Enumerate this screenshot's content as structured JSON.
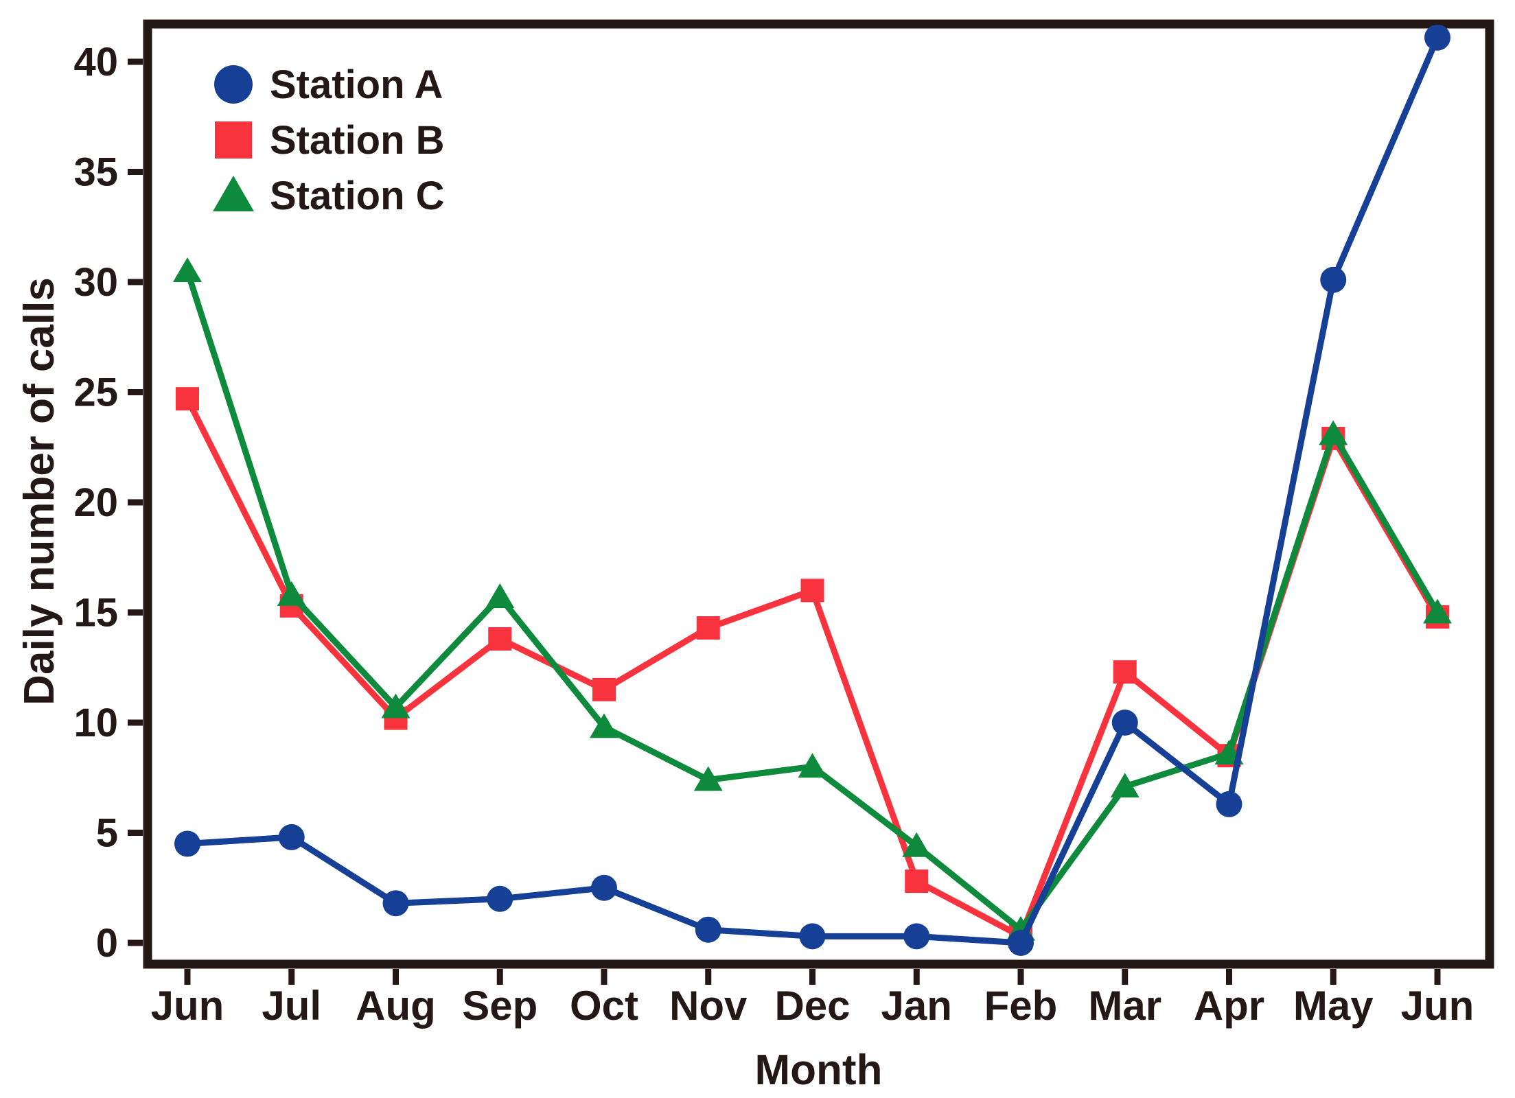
{
  "chart_data": {
    "type": "line",
    "title": "",
    "xlabel": "Month",
    "ylabel": "Daily number of calls",
    "categories": [
      "Jun",
      "Jul",
      "Aug",
      "Sep",
      "Oct",
      "Nov",
      "Dec",
      "Jan",
      "Feb",
      "Mar",
      "Apr",
      "May",
      "Jun"
    ],
    "series": [
      {
        "name": "Station A",
        "marker": "circle",
        "color": "#163f96",
        "zorder": 3,
        "values": [
          4.5,
          4.8,
          1.8,
          2.0,
          2.5,
          0.6,
          0.3,
          0.3,
          0.0,
          10.0,
          6.3,
          30.1,
          41.1
        ]
      },
      {
        "name": "Station B",
        "marker": "square",
        "color": "#f9333e",
        "zorder": 1,
        "values": [
          24.7,
          15.3,
          10.2,
          13.8,
          11.5,
          14.3,
          16.0,
          2.8,
          0.3,
          12.3,
          8.5,
          22.9,
          14.8
        ]
      },
      {
        "name": "Station C",
        "marker": "triangle",
        "color": "#0e8a3c",
        "zorder": 2,
        "values": [
          30.5,
          15.8,
          10.7,
          15.7,
          9.8,
          7.4,
          8.0,
          4.4,
          0.6,
          7.1,
          8.6,
          23.1,
          15.0
        ]
      }
    ],
    "ylim": [
      0,
      40
    ],
    "ytick_step": 5,
    "grid": false,
    "legend_position": "top-left",
    "ink_color": "#231815"
  }
}
